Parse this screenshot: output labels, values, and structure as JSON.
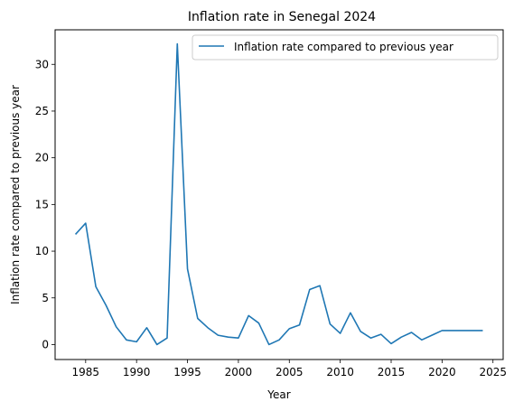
{
  "chart_data": {
    "type": "line",
    "title": "Inflation rate in Senegal 2024",
    "xlabel": "Year",
    "ylabel": "Inflation rate compared to previous year",
    "xlim": [
      1982,
      2026
    ],
    "ylim": [
      -1.6,
      33.7
    ],
    "xticks": [
      1985,
      1990,
      1995,
      2000,
      2005,
      2010,
      2015,
      2020,
      2025
    ],
    "yticks": [
      0,
      5,
      10,
      15,
      20,
      25,
      30
    ],
    "grid": false,
    "legend_position": "top-right",
    "series": [
      {
        "name": "Inflation rate compared to previous year",
        "color": "#1f77b4",
        "x": [
          1984,
          1985,
          1986,
          1987,
          1988,
          1989,
          1990,
          1991,
          1992,
          1993,
          1994,
          1995,
          1996,
          1997,
          1998,
          1999,
          2000,
          2001,
          2002,
          2003,
          2004,
          2005,
          2006,
          2007,
          2008,
          2009,
          2010,
          2011,
          2012,
          2013,
          2014,
          2015,
          2016,
          2017,
          2018,
          2019,
          2020,
          2021,
          2022,
          2023,
          2024
        ],
        "y": [
          11.8,
          13.0,
          6.2,
          4.2,
          1.9,
          0.5,
          0.3,
          1.8,
          0.0,
          0.7,
          32.2,
          8.1,
          2.8,
          1.8,
          1.0,
          0.8,
          0.7,
          3.1,
          2.3,
          0.0,
          0.5,
          1.7,
          2.1,
          5.9,
          6.3,
          2.2,
          1.2,
          3.4,
          1.4,
          0.7,
          1.1,
          0.1,
          0.8,
          1.3,
          0.5,
          1.0,
          1.5,
          1.5,
          1.5,
          1.5,
          1.5
        ]
      }
    ]
  }
}
